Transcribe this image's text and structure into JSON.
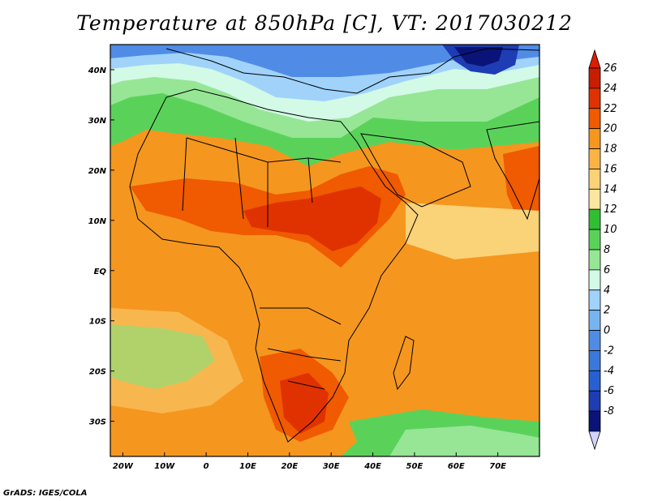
{
  "title": "Temperature at 850hPa [C], VT: 2017030212",
  "credit": "GrADS: IGES/COLA",
  "map": {
    "lon_range": [
      -23,
      80
    ],
    "lat_range": [
      -37,
      45
    ],
    "lon_ticks": [
      {
        "value": -20,
        "label": "20W"
      },
      {
        "value": -10,
        "label": "10W"
      },
      {
        "value": 0,
        "label": "0"
      },
      {
        "value": 10,
        "label": "10E"
      },
      {
        "value": 20,
        "label": "20E"
      },
      {
        "value": 30,
        "label": "30E"
      },
      {
        "value": 40,
        "label": "40E"
      },
      {
        "value": 50,
        "label": "50E"
      },
      {
        "value": 60,
        "label": "60E"
      },
      {
        "value": 70,
        "label": "70E"
      }
    ],
    "lat_ticks": [
      {
        "value": 40,
        "label": "40N"
      },
      {
        "value": 30,
        "label": "30N"
      },
      {
        "value": 20,
        "label": "20N"
      },
      {
        "value": 10,
        "label": "10N"
      },
      {
        "value": 0,
        "label": "EQ"
      },
      {
        "value": -10,
        "label": "10S"
      },
      {
        "value": -20,
        "label": "20S"
      },
      {
        "value": -30,
        "label": "30S"
      }
    ]
  },
  "colorbar": {
    "levels": [
      {
        "label": "26",
        "color": "#c81e00"
      },
      {
        "label": "24",
        "color": "#e03200"
      },
      {
        "label": "22",
        "color": "#f05a00"
      },
      {
        "label": "20",
        "color": "#f5961e"
      },
      {
        "label": "18",
        "color": "#fab446"
      },
      {
        "label": "16",
        "color": "#fad278"
      },
      {
        "label": "14",
        "color": "#fae6a0"
      },
      {
        "label": "12",
        "color": "#32be32"
      },
      {
        "label": "10",
        "color": "#5ad25a"
      },
      {
        "label": "8",
        "color": "#96e696"
      },
      {
        "label": "6",
        "color": "#d2fae6"
      },
      {
        "label": "4",
        "color": "#a0d2fa"
      },
      {
        "label": "2",
        "color": "#78b4f0"
      },
      {
        "label": "0",
        "color": "#508ce6"
      },
      {
        "label": "-2",
        "color": "#3c78dc"
      },
      {
        "label": "-4",
        "color": "#2860d2"
      },
      {
        "label": "-6",
        "color": "#1e3cb4"
      },
      {
        "label": "-8",
        "color": "#0a1478"
      }
    ],
    "top_arrow_color": "#dc1e00",
    "bottom_arrow_color": "#d2d2fa"
  }
}
